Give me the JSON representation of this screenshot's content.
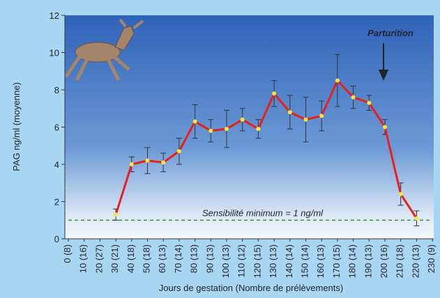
{
  "chart_data": {
    "type": "line",
    "y_label": "PAG ng/ml (moyenne)",
    "x_label": "Jours de gestation (Nombre de prélèvements)",
    "annotation": "Parturition",
    "threshold": {
      "value": 1,
      "label": "Sensibilité minimum = 1 ng/ml",
      "color": "#3a9a3a"
    },
    "categories": [
      "0 (8)",
      "10 (16)",
      "20 (27)",
      "30 (21)",
      "40 (18)",
      "50 (18)",
      "60 (13)",
      "70 (14)",
      "80 (13)",
      "90 (13)",
      "100 (13)",
      "110 (12)",
      "120 (15)",
      "130 (13)",
      "140 (14)",
      "150 (14)",
      "160 (13)",
      "170 (15)",
      "180 (14)",
      "190 (13)",
      "200 (16)",
      "210 (18)",
      "220 (13)",
      "230 (9)"
    ],
    "values": [
      null,
      null,
      null,
      1.3,
      4.0,
      4.2,
      4.1,
      4.7,
      6.3,
      5.8,
      5.9,
      6.4,
      5.9,
      7.8,
      6.8,
      6.4,
      6.6,
      8.5,
      7.6,
      7.3,
      6.0,
      2.4,
      1.1,
      null
    ],
    "errors": [
      null,
      null,
      null,
      0.3,
      0.4,
      0.7,
      0.5,
      0.7,
      0.9,
      0.6,
      1.0,
      0.6,
      0.5,
      0.7,
      0.9,
      1.2,
      0.8,
      1.4,
      0.6,
      0.4,
      0.4,
      0.6,
      0.4,
      null
    ],
    "color": "#e8201c",
    "marker_color": "#f2e84a",
    "ylim": [
      0,
      12
    ],
    "yticks": [
      0,
      2,
      4,
      6,
      8,
      10,
      12
    ]
  }
}
